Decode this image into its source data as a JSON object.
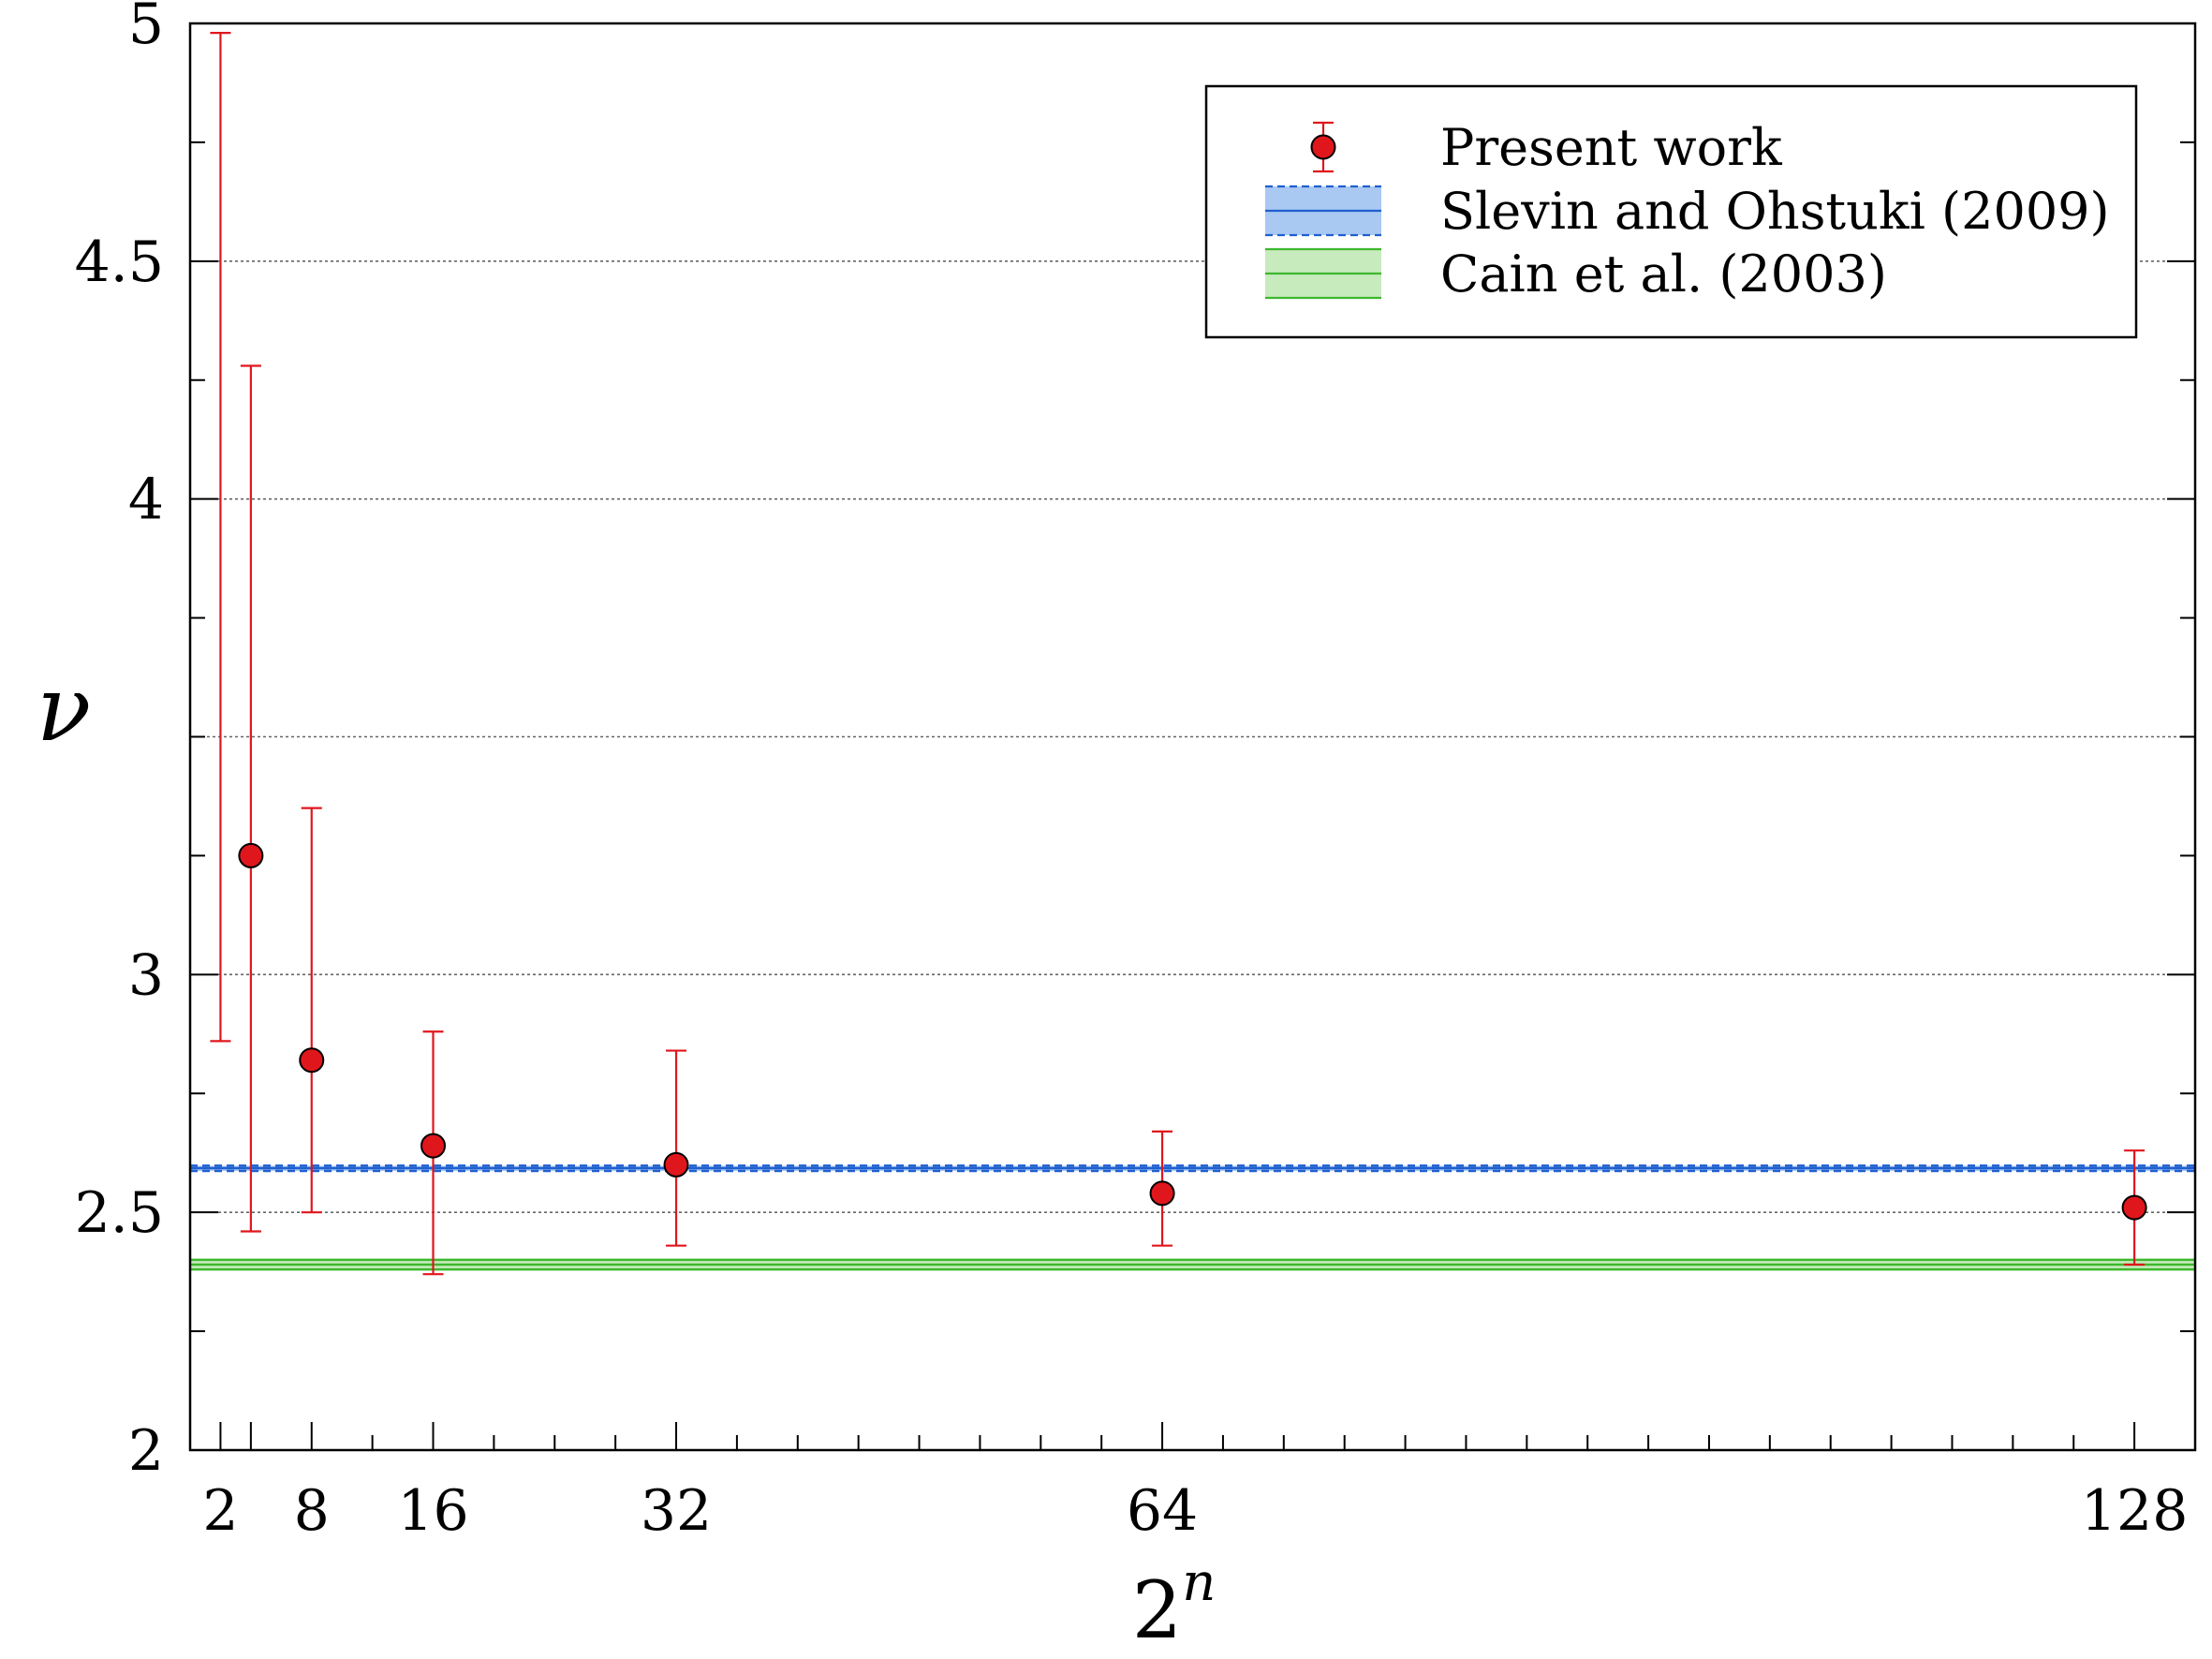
{
  "chart_data": {
    "type": "scatter",
    "xlabel": "2",
    "xlabel_sup": "n",
    "ylabel": "ν",
    "xlim": [
      0,
      132
    ],
    "ylim": [
      2,
      5
    ],
    "x_ticks": [
      2,
      4,
      8,
      16,
      32,
      64,
      128
    ],
    "x_tick_labels": [
      "2",
      "",
      "8",
      "16",
      "32",
      "64",
      "128"
    ],
    "y_ticks": [
      2,
      2.5,
      3,
      4,
      4.5,
      5
    ],
    "y_tick_labels": [
      "2",
      "2.5",
      "3",
      "4",
      "4.5",
      "5"
    ],
    "y_minor_ticks": [
      2.25,
      2.75,
      3.25,
      3.5,
      3.75,
      4.25,
      4.75
    ],
    "grid_y": [
      2.5,
      3,
      3.5,
      4,
      4.5
    ],
    "grid": true,
    "legend_position": "top-right",
    "series": [
      {
        "name": "Present work",
        "kind": "points_with_errorbars",
        "color": "#e0161d",
        "points": [
          {
            "x": 4,
            "y": 3.25,
            "ylow": 2.46,
            "yhigh": 4.28
          },
          {
            "x": 8,
            "y": 2.82,
            "ylow": 2.5,
            "yhigh": 3.35
          },
          {
            "x": 16,
            "y": 2.64,
            "ylow": 2.37,
            "yhigh": 2.88
          },
          {
            "x": 32,
            "y": 2.6,
            "ylow": 2.43,
            "yhigh": 2.84
          },
          {
            "x": 64,
            "y": 2.54,
            "ylow": 2.43,
            "yhigh": 2.67
          },
          {
            "x": 128,
            "y": 2.51,
            "ylow": 2.39,
            "yhigh": 2.63
          }
        ],
        "extra_errorbars": [
          {
            "x": 2,
            "ylow": 2.86,
            "yhigh": 4.98
          }
        ]
      },
      {
        "name": "Slevin and Ohstuki (2009)",
        "kind": "band",
        "value": 2.593,
        "low": 2.587,
        "high": 2.598,
        "line_color": "#1f5fcf",
        "fill_color": "#a9c8f2"
      },
      {
        "name": "Cain et al. (2003)",
        "kind": "band",
        "value": 2.39,
        "low": 2.38,
        "high": 2.4,
        "line_color": "#3db82e",
        "fill_color": "#c7ebbd"
      }
    ]
  }
}
